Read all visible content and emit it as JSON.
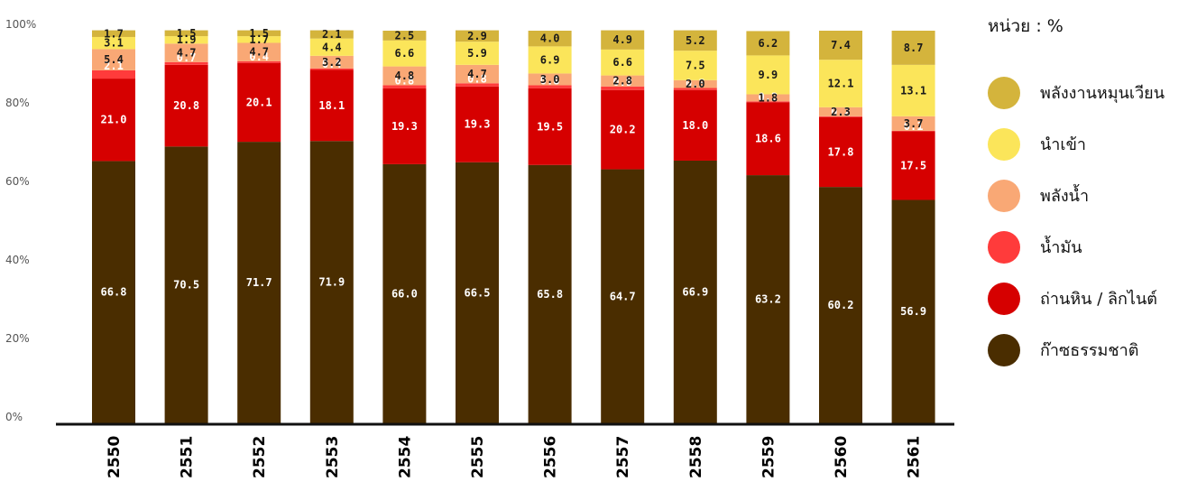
{
  "unit_label": "หน่วย : %",
  "chart_data": {
    "type": "bar",
    "stacked": true,
    "categories": [
      "2550",
      "2551",
      "2552",
      "2553",
      "2554",
      "2555",
      "2556",
      "2557",
      "2558",
      "2559",
      "2560",
      "2561"
    ],
    "yticks": [
      "0%",
      "20%",
      "40%",
      "60%",
      "80%",
      "100%"
    ],
    "ylim": [
      0,
      100
    ],
    "grid": false,
    "legend_position": "right",
    "series": [
      {
        "name": "ก๊าซธรรมชาติ",
        "color": "#4a2d00",
        "label_color": "#ffffff",
        "values": [
          66.8,
          70.5,
          71.7,
          71.9,
          66.0,
          66.5,
          65.8,
          64.7,
          66.9,
          63.2,
          60.2,
          56.9
        ]
      },
      {
        "name": "ถ่านหิน / ลิกไนต์",
        "color": "#d60000",
        "label_color": "#ffffff",
        "values": [
          21.0,
          20.8,
          20.1,
          18.1,
          19.3,
          19.3,
          19.5,
          20.2,
          18.0,
          18.6,
          17.8,
          17.5
        ]
      },
      {
        "name": "น้ำมัน",
        "color": "#ff3b3b",
        "label_color": "#ffffff",
        "values": [
          2.1,
          0.7,
          0.4,
          0.4,
          0.8,
          0.8,
          0.8,
          0.9,
          0.5,
          0.2,
          0.2,
          0.1
        ]
      },
      {
        "name": "พลังน้ำ",
        "color": "#f9a875",
        "label_color": "#1a1a1a",
        "values": [
          5.4,
          4.7,
          4.7,
          3.2,
          4.8,
          4.7,
          3.0,
          2.8,
          2.0,
          1.8,
          2.3,
          3.7
        ]
      },
      {
        "name": "นำเข้า",
        "color": "#fbe55a",
        "label_color": "#1a1a1a",
        "values": [
          3.1,
          1.9,
          1.7,
          4.4,
          6.6,
          5.9,
          6.9,
          6.6,
          7.5,
          9.9,
          12.1,
          13.1
        ]
      },
      {
        "name": "พลังงานหมุนเวียน",
        "color": "#d4b43c",
        "label_color": "#1a1a1a",
        "values": [
          1.7,
          1.5,
          1.5,
          2.1,
          2.5,
          2.9,
          4.0,
          4.9,
          5.2,
          6.2,
          7.4,
          8.7
        ]
      }
    ]
  }
}
